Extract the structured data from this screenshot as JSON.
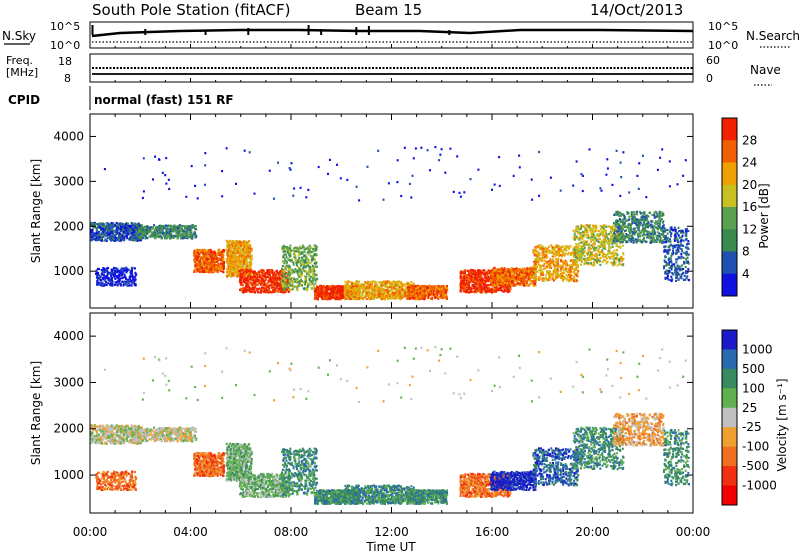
{
  "header": {
    "station": "South Pole Station (fitACF)",
    "beam": "Beam 15",
    "date": "14/Oct/2013"
  },
  "status_panels": {
    "nsky_label": "N.Sky",
    "nsky_ticks": [
      "10^5",
      "10^0"
    ],
    "nsearch_label": "N.Search",
    "nsearch_ticks": [
      "10^5",
      "10^0"
    ],
    "freq_label_line1": "Freq.",
    "freq_label_line2": "[MHz]",
    "freq_ticks": [
      "18",
      "8"
    ],
    "nave_label": "Nave",
    "nave_ticks": [
      "60",
      "0"
    ],
    "cpid_label": "CPID",
    "cpid_value": "normal (fast) 151 RF"
  },
  "colors": {
    "power": [
      "#1010e0",
      "#2050b0",
      "#3a8a50",
      "#5aa050",
      "#c8c020",
      "#f0a000",
      "#f06000",
      "#f02000"
    ],
    "velocity": [
      "#1a1ac8",
      "#2a6ab0",
      "#3a8a60",
      "#60b050",
      "#c0c0c0",
      "#f0a030",
      "#f07020",
      "#f03010",
      "#f00000"
    ]
  },
  "chart_data": [
    {
      "type": "heatmap",
      "name": "power",
      "ylabel": "Slant Range [km]",
      "y_ticks": [
        "1000",
        "2000",
        "3000",
        "4000"
      ],
      "y_tick_values": [
        1000,
        2000,
        3000,
        4000
      ],
      "ylim": [
        180,
        4500
      ],
      "x_ticks": [
        "00:00",
        "04:00",
        "08:00",
        "12:00",
        "16:00",
        "20:00",
        "00:00"
      ],
      "xlim_hours": [
        0,
        24
      ],
      "colorbar_label": "Power [dB]",
      "colorbar_ticks": [
        "4",
        "8",
        "12",
        "16",
        "20",
        "24",
        "28"
      ],
      "colorbar_range": [
        0,
        30
      ]
    },
    {
      "type": "heatmap",
      "name": "velocity",
      "ylabel": "Slant Range [km]",
      "y_ticks": [
        "1000",
        "2000",
        "3000",
        "4000"
      ],
      "y_tick_values": [
        1000,
        2000,
        3000,
        4000
      ],
      "ylim": [
        180,
        4500
      ],
      "x_ticks": [
        "00:00",
        "04:00",
        "08:00",
        "12:00",
        "16:00",
        "20:00",
        "00:00"
      ],
      "xlim_hours": [
        0,
        24
      ],
      "xlabel": "Time UT",
      "colorbar_label": "Velocity [m s⁻¹]",
      "colorbar_ticks": [
        "1000",
        "500",
        "100",
        "25",
        "-25",
        "-100",
        "-500",
        "-1000"
      ]
    }
  ]
}
